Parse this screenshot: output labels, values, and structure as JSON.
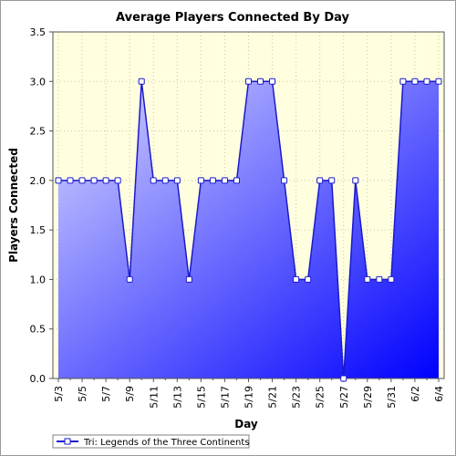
{
  "chart_data": {
    "type": "area",
    "title": "Average Players Connected By Day",
    "xlabel": "Day",
    "ylabel": "Players Connected",
    "ylim": [
      0,
      3.5
    ],
    "yticks": [
      "0.0",
      "0.5",
      "1.0",
      "1.5",
      "2.0",
      "2.5",
      "3.0",
      "3.5"
    ],
    "grid": true,
    "legend_position": "bottom-left",
    "colors": {
      "area_top": "#d8d8ff",
      "area_bottom": "#0000ff",
      "line": "#1a1acc",
      "plot_background": "#ffffe0",
      "marker_fill": "#ffffff"
    },
    "x": [
      "5/3",
      "5/4",
      "5/5",
      "5/6",
      "5/7",
      "5/8",
      "5/9",
      "5/10",
      "5/11",
      "5/12",
      "5/13",
      "5/14",
      "5/15",
      "5/16",
      "5/17",
      "5/18",
      "5/19",
      "5/20",
      "5/21",
      "5/22",
      "5/23",
      "5/24",
      "5/25",
      "5/26",
      "5/27",
      "5/28",
      "5/29",
      "5/30",
      "5/31",
      "6/1",
      "6/2",
      "6/3",
      "6/4"
    ],
    "xtick_labels": [
      "5/3",
      "5/5",
      "5/7",
      "5/9",
      "5/11",
      "5/13",
      "5/15",
      "5/17",
      "5/19",
      "5/21",
      "5/23",
      "5/25",
      "5/27",
      "5/29",
      "5/31",
      "6/2",
      "6/4"
    ],
    "series": [
      {
        "name": "Tri: Legends of the Three Continents",
        "values": [
          2,
          2,
          2,
          2,
          2,
          2,
          1,
          3,
          2,
          2,
          2,
          1,
          2,
          2,
          2,
          2,
          3,
          3,
          3,
          2,
          1,
          1,
          2,
          2,
          0,
          2,
          1,
          1,
          1,
          3,
          3,
          3,
          3
        ]
      }
    ]
  }
}
